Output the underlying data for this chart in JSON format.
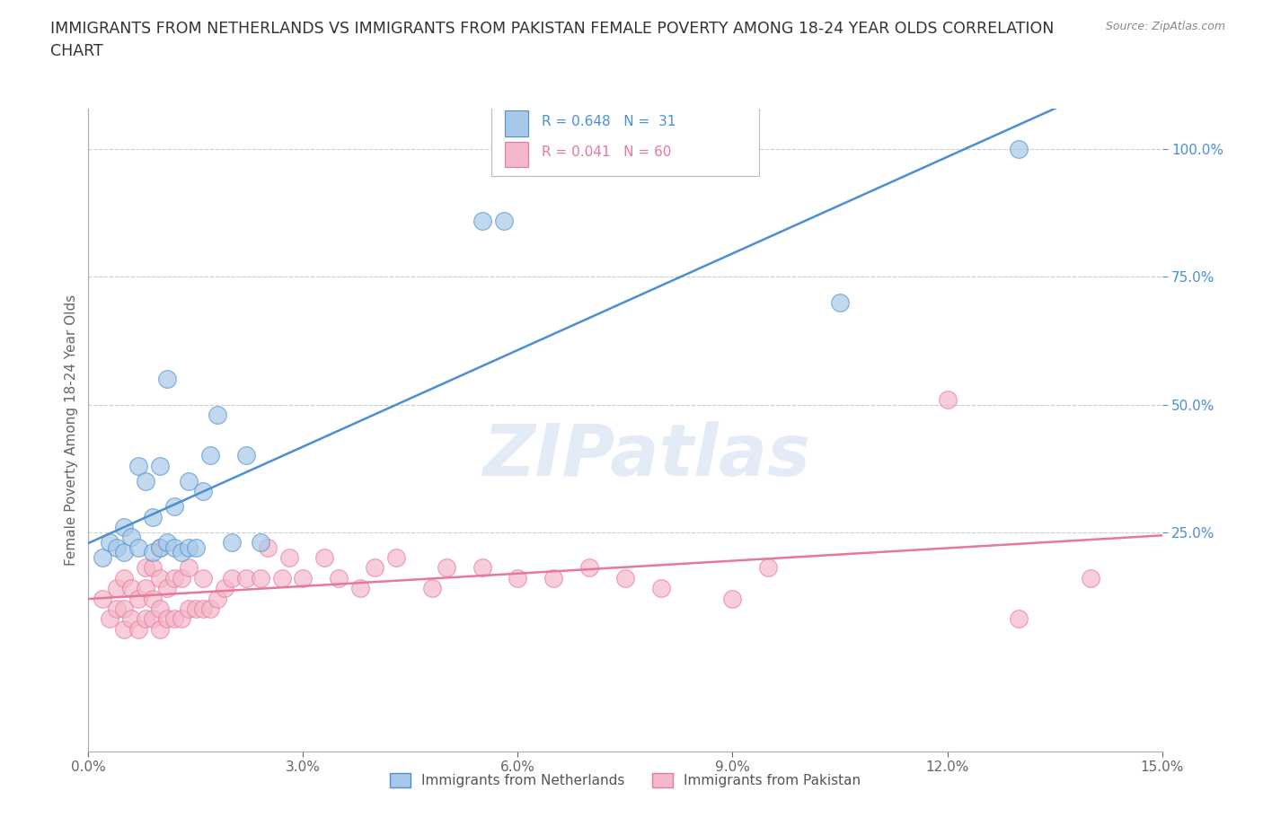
{
  "title": "IMMIGRANTS FROM NETHERLANDS VS IMMIGRANTS FROM PAKISTAN FEMALE POVERTY AMONG 18-24 YEAR OLDS CORRELATION\nCHART",
  "source": "Source: ZipAtlas.com",
  "ylabel": "Female Poverty Among 18-24 Year Olds",
  "xlim": [
    0.0,
    0.15
  ],
  "ylim": [
    -0.18,
    1.08
  ],
  "xticks": [
    0.0,
    0.03,
    0.06,
    0.09,
    0.12,
    0.15
  ],
  "xtick_labels": [
    "0.0%",
    "3.0%",
    "6.0%",
    "9.0%",
    "12.0%",
    "15.0%"
  ],
  "yticks": [
    0.25,
    0.5,
    0.75,
    1.0
  ],
  "ytick_labels": [
    "25.0%",
    "50.0%",
    "75.0%",
    "100.0%"
  ],
  "watermark": "ZIPatlas",
  "color_netherlands": "#a8c8e8",
  "color_pakistan": "#f5b8ca",
  "line_color_netherlands": "#4a8fd4",
  "line_color_pakistan": "#e8789a",
  "tick_color_y": "#4a8fd4",
  "netherlands_x": [
    0.002,
    0.003,
    0.004,
    0.005,
    0.005,
    0.006,
    0.007,
    0.007,
    0.008,
    0.009,
    0.009,
    0.01,
    0.01,
    0.011,
    0.011,
    0.012,
    0.012,
    0.013,
    0.014,
    0.014,
    0.015,
    0.016,
    0.017,
    0.018,
    0.02,
    0.022,
    0.024,
    0.055,
    0.058,
    0.105,
    0.13
  ],
  "netherlands_y": [
    0.2,
    0.23,
    0.22,
    0.21,
    0.26,
    0.24,
    0.22,
    0.38,
    0.35,
    0.21,
    0.28,
    0.22,
    0.38,
    0.23,
    0.55,
    0.22,
    0.3,
    0.21,
    0.22,
    0.35,
    0.22,
    0.33,
    0.4,
    0.48,
    0.23,
    0.4,
    0.23,
    0.86,
    0.86,
    0.7,
    1.0
  ],
  "pakistan_x": [
    0.002,
    0.003,
    0.004,
    0.004,
    0.005,
    0.005,
    0.005,
    0.006,
    0.006,
    0.007,
    0.007,
    0.008,
    0.008,
    0.008,
    0.009,
    0.009,
    0.009,
    0.01,
    0.01,
    0.01,
    0.01,
    0.011,
    0.011,
    0.012,
    0.012,
    0.013,
    0.013,
    0.014,
    0.014,
    0.015,
    0.016,
    0.016,
    0.017,
    0.018,
    0.019,
    0.02,
    0.022,
    0.024,
    0.025,
    0.027,
    0.028,
    0.03,
    0.033,
    0.035,
    0.038,
    0.04,
    0.043,
    0.048,
    0.05,
    0.055,
    0.06,
    0.065,
    0.07,
    0.075,
    0.08,
    0.09,
    0.095,
    0.12,
    0.13,
    0.14
  ],
  "pakistan_y": [
    0.12,
    0.08,
    0.1,
    0.14,
    0.06,
    0.1,
    0.16,
    0.08,
    0.14,
    0.06,
    0.12,
    0.08,
    0.14,
    0.18,
    0.08,
    0.12,
    0.18,
    0.06,
    0.1,
    0.16,
    0.22,
    0.08,
    0.14,
    0.08,
    0.16,
    0.08,
    0.16,
    0.1,
    0.18,
    0.1,
    0.1,
    0.16,
    0.1,
    0.12,
    0.14,
    0.16,
    0.16,
    0.16,
    0.22,
    0.16,
    0.2,
    0.16,
    0.2,
    0.16,
    0.14,
    0.18,
    0.2,
    0.14,
    0.18,
    0.18,
    0.16,
    0.16,
    0.18,
    0.16,
    0.14,
    0.12,
    0.18,
    0.51,
    0.08,
    0.16
  ],
  "background_color": "#ffffff",
  "grid_color": "#cccccc",
  "title_fontsize": 12.5,
  "axis_label_fontsize": 11,
  "tick_fontsize": 11,
  "source_fontsize": 9
}
